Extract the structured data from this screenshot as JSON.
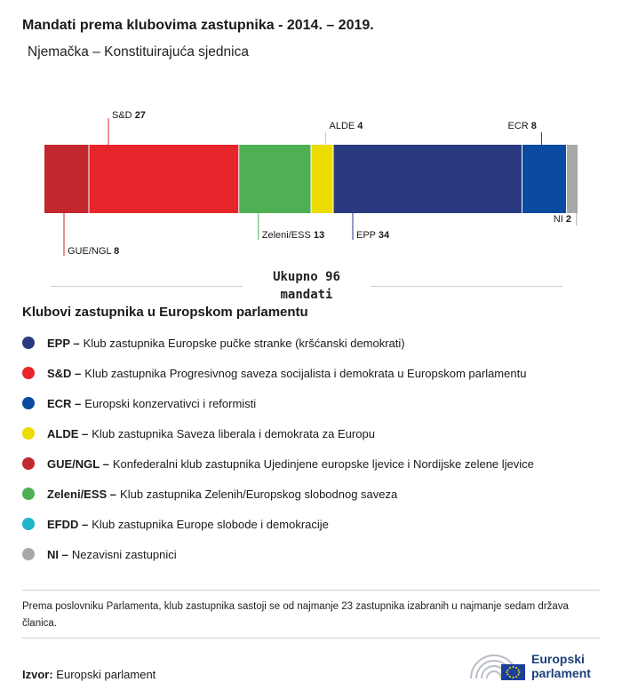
{
  "header": {
    "title": "Mandati prema klubovima zastupnika - 2014. – 2019.",
    "subtitle": "Njemačka – Konstituirajuća sjednica"
  },
  "chart_data": {
    "type": "bar",
    "orientation": "stacked-horizontal",
    "total": 96,
    "segments": [
      {
        "code": "GUE/NGL",
        "value": 8,
        "color": "#c1272d",
        "label_side": "below"
      },
      {
        "code": "S&D",
        "value": 27,
        "color": "#e6262b",
        "label_side": "above"
      },
      {
        "code": "Zeleni/ESS",
        "value": 13,
        "color": "#4faf55",
        "label_side": "below"
      },
      {
        "code": "ALDE",
        "value": 4,
        "color": "#ecdc00",
        "label_side": "above"
      },
      {
        "code": "EPP",
        "value": 34,
        "color": "#293a80",
        "label_side": "below"
      },
      {
        "code": "ECR",
        "value": 8,
        "color": "#0a4aa0",
        "label_side": "above"
      },
      {
        "code": "NI",
        "value": 2,
        "color": "#a8a8a8",
        "label_side": "below"
      }
    ]
  },
  "total_label": {
    "line1": "Ukupno 96",
    "line2": "mandati"
  },
  "legend": {
    "title": "Klubovi zastupnika u Europskom parlamentu",
    "items": [
      {
        "code": "EPP –",
        "text": "Klub zastupnika Europske pučke stranke (kršćanski demokrati)",
        "color": "#293a80"
      },
      {
        "code": "S&D –",
        "text": "Klub zastupnika Progresivnog saveza socijalista i demokrata u Europskom parlamentu",
        "color": "#e6262b"
      },
      {
        "code": "ECR –",
        "text": "Europski konzervativci i reformisti",
        "color": "#0a4aa0"
      },
      {
        "code": "ALDE –",
        "text": "Klub zastupnika Saveza liberala i demokrata za Europu",
        "color": "#ecdc00"
      },
      {
        "code": "GUE/NGL –",
        "text": "Konfederalni klub zastupnika Ujedinjene europske ljevice i Nordijske zelene ljevice",
        "color": "#c1272d"
      },
      {
        "code": "Zeleni/ESS –",
        "text": "Klub zastupnika Zelenih/Europskog slobodnog saveza",
        "color": "#4faf55"
      },
      {
        "code": "EFDD –",
        "text": "Klub zastupnika Europe slobode i demokracije",
        "color": "#20b5c8"
      },
      {
        "code": "NI –",
        "text": "Nezavisni zastupnici",
        "color": "#a8a8a8"
      }
    ]
  },
  "note": "Prema poslovniku Parlamenta, klub zastupnika sastoji se od najmanje 23 zastupnika izabranih u najmanje sedam država članica.",
  "source": {
    "label": "Izvor:",
    "text": "Europski parlament"
  },
  "logo": {
    "line1": "Europski",
    "line2": "parlament"
  }
}
